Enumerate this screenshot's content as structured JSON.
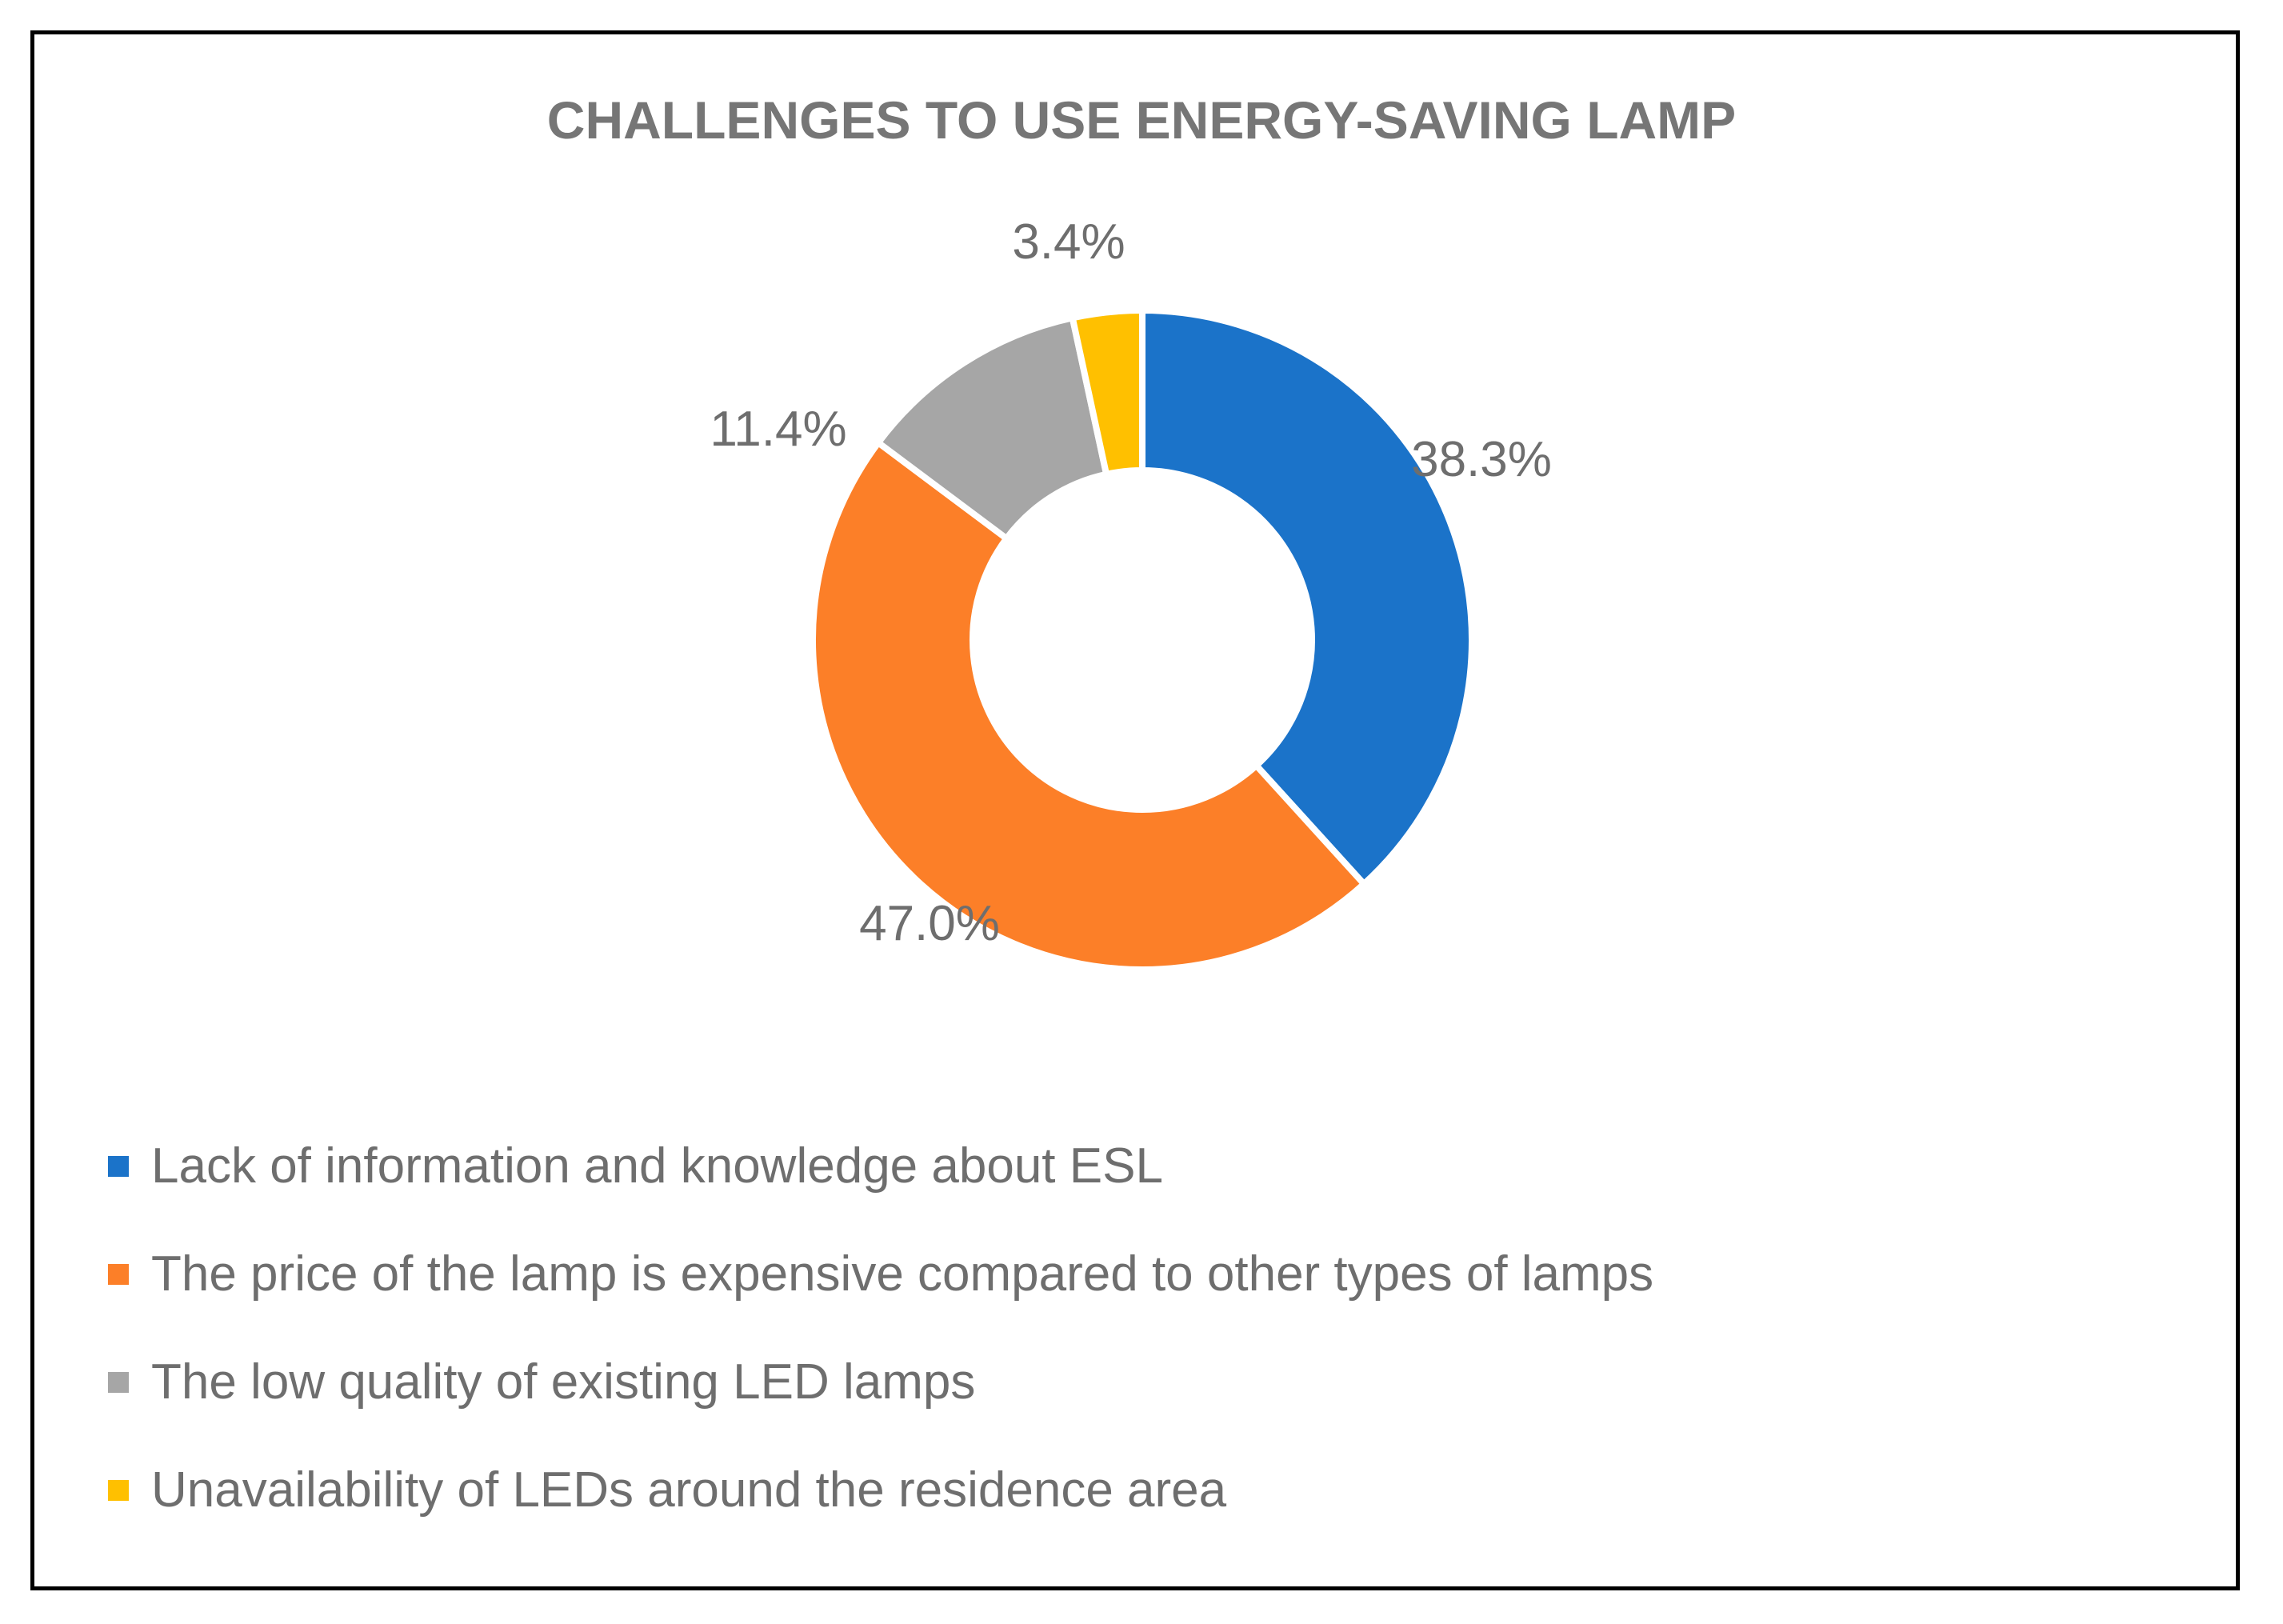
{
  "chart_data": {
    "type": "donut",
    "title": "CHALLENGES TO USE ENERGY-SAVING LAMP",
    "unit": "%",
    "slices": [
      {
        "name": "Lack of information and knowledge about ESL",
        "value": 38.3,
        "label": "38.3%",
        "color": "#1b73c9"
      },
      {
        "name": "The price of the lamp is expensive compared to other types of lamps",
        "value": 47.0,
        "label": "47.0%",
        "color": "#fc7f28"
      },
      {
        "name": "The low quality of existing LED lamps",
        "value": 11.4,
        "label": "11.4%",
        "color": "#a6a6a6"
      },
      {
        "name": "Unavailability of LEDs around the residence area",
        "value": 3.4,
        "label": "3.4%",
        "color": "#ffc000"
      }
    ],
    "start_angle_deg": 0,
    "direction": "clockwise",
    "legend_position": "bottom-left"
  }
}
